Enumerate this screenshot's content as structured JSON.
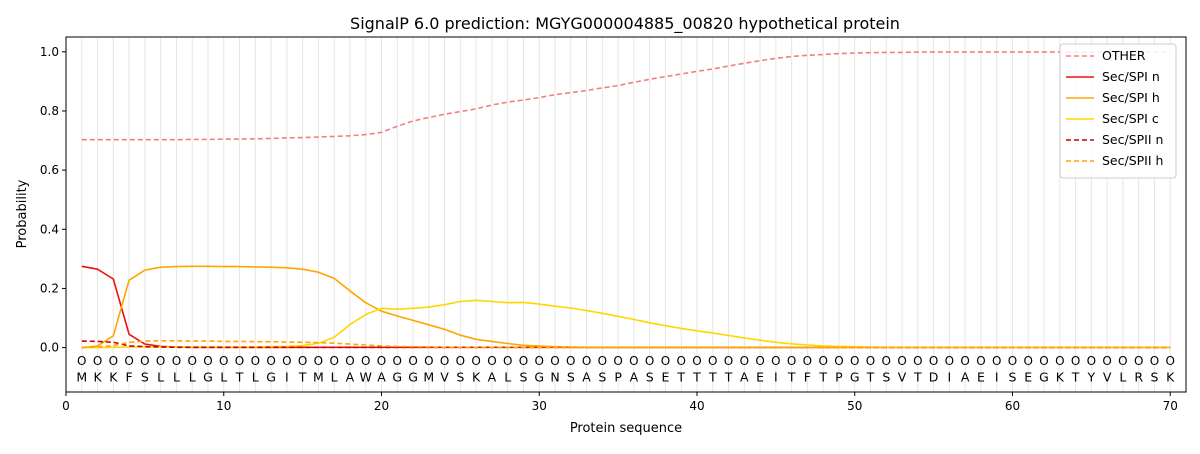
{
  "chart_data": {
    "type": "line",
    "title": "SignalP 6.0 prediction: MGYG000004885_00820 hypothetical protein",
    "xlabel": "Protein sequence",
    "ylabel": "Probability",
    "xlim": [
      0,
      71
    ],
    "ylim": [
      -0.15,
      1.05
    ],
    "xticks": [
      0,
      10,
      20,
      30,
      40,
      50,
      60,
      70
    ],
    "yticks": [
      0.0,
      0.2,
      0.4,
      0.6,
      0.8,
      1.0
    ],
    "grid": "vertical lines at each residue",
    "legend_position": "top-right",
    "sequence": [
      "M",
      "K",
      "K",
      "F",
      "S",
      "L",
      "L",
      "L",
      "G",
      "L",
      "T",
      "L",
      "G",
      "I",
      "T",
      "M",
      "L",
      "A",
      "W",
      "A",
      "G",
      "G",
      "M",
      "V",
      "S",
      "K",
      "A",
      "L",
      "S",
      "G",
      "N",
      "S",
      "A",
      "S",
      "P",
      "A",
      "S",
      "E",
      "T",
      "T",
      "T",
      "T",
      "A",
      "E",
      "I",
      "T",
      "F",
      "T",
      "P",
      "G",
      "T",
      "S",
      "V",
      "T",
      "D",
      "I",
      "A",
      "E",
      "I",
      "S",
      "E",
      "G",
      "K",
      "T",
      "Y",
      "V",
      "L",
      "R",
      "S",
      "K"
    ],
    "region_marker": "O",
    "x": [
      1,
      2,
      3,
      4,
      5,
      6,
      7,
      8,
      9,
      10,
      11,
      12,
      13,
      14,
      15,
      16,
      17,
      18,
      19,
      20,
      21,
      22,
      23,
      24,
      25,
      26,
      27,
      28,
      29,
      30,
      31,
      32,
      33,
      34,
      35,
      36,
      37,
      38,
      39,
      40,
      41,
      42,
      43,
      44,
      45,
      46,
      47,
      48,
      49,
      50,
      51,
      52,
      53,
      54,
      55,
      56,
      57,
      58,
      59,
      60,
      61,
      62,
      63,
      64,
      65,
      66,
      67,
      68,
      69,
      70
    ],
    "series": [
      {
        "name": "OTHER",
        "color": "#f08080",
        "dash": "dashed",
        "values": [
          0.703,
          0.703,
          0.703,
          0.703,
          0.703,
          0.703,
          0.703,
          0.704,
          0.704,
          0.705,
          0.705,
          0.706,
          0.707,
          0.709,
          0.71,
          0.712,
          0.714,
          0.716,
          0.72,
          0.728,
          0.748,
          0.766,
          0.778,
          0.789,
          0.798,
          0.807,
          0.82,
          0.83,
          0.837,
          0.845,
          0.855,
          0.862,
          0.869,
          0.878,
          0.886,
          0.897,
          0.907,
          0.916,
          0.925,
          0.934,
          0.942,
          0.952,
          0.961,
          0.97,
          0.978,
          0.984,
          0.988,
          0.991,
          0.994,
          0.996,
          0.997,
          0.998,
          0.998,
          0.999,
          0.999,
          0.999,
          0.999,
          0.999,
          0.999,
          0.999,
          0.999,
          0.999,
          0.999,
          0.999,
          0.999,
          0.999,
          0.999,
          0.999,
          0.999,
          0.999
        ]
      },
      {
        "name": "Sec/SPI n",
        "color": "#ee1111",
        "dash": "solid",
        "values": [
          0.275,
          0.265,
          0.232,
          0.045,
          0.012,
          0.004,
          0.002,
          0.001,
          0.001,
          0.001,
          0.001,
          0.001,
          0.001,
          0.001,
          0.001,
          0.001,
          0.001,
          0.001,
          0.001,
          0.001,
          0.001,
          0.001,
          0.001,
          0.001,
          0.001,
          0.001,
          0.001,
          0.001,
          0.001,
          0.001,
          0.001,
          0.001,
          0.001,
          0.001,
          0.001,
          0.001,
          0.001,
          0.001,
          0.001,
          0.001,
          0.001,
          0.001,
          0.001,
          0.001,
          0.001,
          0.001,
          0.001,
          0.001,
          0.001,
          0.001,
          0.001,
          0.001,
          0.001,
          0.001,
          0.001,
          0.001,
          0.001,
          0.001,
          0.001,
          0.001,
          0.001,
          0.001,
          0.001,
          0.001,
          0.001,
          0.001,
          0.001,
          0.001,
          0.001,
          0.001
        ]
      },
      {
        "name": "Sec/SPI h",
        "color": "#ffa500",
        "dash": "solid",
        "values": [
          0.0,
          0.005,
          0.04,
          0.228,
          0.262,
          0.272,
          0.274,
          0.275,
          0.275,
          0.274,
          0.274,
          0.273,
          0.272,
          0.27,
          0.265,
          0.255,
          0.234,
          0.192,
          0.152,
          0.123,
          0.107,
          0.092,
          0.077,
          0.062,
          0.042,
          0.028,
          0.021,
          0.014,
          0.008,
          0.005,
          0.003,
          0.002,
          0.001,
          0.001,
          0.001,
          0.001,
          0.001,
          0.001,
          0.001,
          0.001,
          0.001,
          0.001,
          0.001,
          0.001,
          0.001,
          0.001,
          0.001,
          0.001,
          0.001,
          0.001,
          0.001,
          0.001,
          0.001,
          0.001,
          0.001,
          0.001,
          0.001,
          0.001,
          0.001,
          0.001,
          0.001,
          0.001,
          0.001,
          0.001,
          0.001,
          0.001,
          0.001,
          0.001,
          0.001,
          0.001
        ]
      },
      {
        "name": "Sec/SPI c",
        "color": "#ffd700",
        "dash": "solid",
        "values": [
          0.0,
          0.0,
          0.001,
          0.002,
          0.002,
          0.002,
          0.002,
          0.002,
          0.002,
          0.002,
          0.002,
          0.002,
          0.003,
          0.004,
          0.007,
          0.015,
          0.035,
          0.078,
          0.112,
          0.133,
          0.13,
          0.133,
          0.137,
          0.145,
          0.156,
          0.16,
          0.156,
          0.152,
          0.153,
          0.147,
          0.14,
          0.134,
          0.125,
          0.116,
          0.106,
          0.095,
          0.084,
          0.074,
          0.065,
          0.057,
          0.049,
          0.041,
          0.033,
          0.025,
          0.018,
          0.013,
          0.009,
          0.006,
          0.004,
          0.003,
          0.002,
          0.001,
          0.001,
          0.001,
          0.001,
          0.001,
          0.001,
          0.001,
          0.001,
          0.001,
          0.001,
          0.001,
          0.001,
          0.001,
          0.001,
          0.001,
          0.001,
          0.001,
          0.001,
          0.001
        ]
      },
      {
        "name": "Sec/SPII n",
        "color": "#cc0000",
        "dash": "dashed",
        "values": [
          0.022,
          0.021,
          0.018,
          0.006,
          0.003,
          0.002,
          0.001,
          0.001,
          0.001,
          0.001,
          0.001,
          0.001,
          0.001,
          0.001,
          0.001,
          0.001,
          0.001,
          0.001,
          0.001,
          0.001,
          0.001,
          0.001,
          0.001,
          0.001,
          0.001,
          0.001,
          0.001,
          0.001,
          0.001,
          0.001,
          0.001,
          0.001,
          0.001,
          0.001,
          0.001,
          0.001,
          0.001,
          0.001,
          0.001,
          0.001,
          0.001,
          0.001,
          0.001,
          0.001,
          0.001,
          0.001,
          0.001,
          0.001,
          0.001,
          0.001,
          0.001,
          0.001,
          0.001,
          0.001,
          0.001,
          0.001,
          0.001,
          0.001,
          0.001,
          0.001,
          0.001,
          0.001,
          0.001,
          0.001,
          0.001,
          0.001,
          0.001,
          0.001,
          0.001,
          0.001
        ]
      },
      {
        "name": "Sec/SPII h",
        "color": "#ffa500",
        "dash": "dashed",
        "values": [
          0.0,
          0.002,
          0.007,
          0.018,
          0.022,
          0.023,
          0.023,
          0.022,
          0.022,
          0.021,
          0.021,
          0.02,
          0.02,
          0.019,
          0.018,
          0.017,
          0.015,
          0.012,
          0.009,
          0.006,
          0.004,
          0.003,
          0.002,
          0.001,
          0.001,
          0.001,
          0.001,
          0.001,
          0.001,
          0.001,
          0.001,
          0.001,
          0.001,
          0.001,
          0.001,
          0.001,
          0.001,
          0.001,
          0.001,
          0.001,
          0.001,
          0.001,
          0.001,
          0.001,
          0.001,
          0.001,
          0.001,
          0.001,
          0.001,
          0.001,
          0.001,
          0.001,
          0.001,
          0.001,
          0.001,
          0.001,
          0.001,
          0.001,
          0.001,
          0.001,
          0.001,
          0.001,
          0.001,
          0.001,
          0.001,
          0.001,
          0.001,
          0.001,
          0.001,
          0.001
        ]
      }
    ]
  }
}
